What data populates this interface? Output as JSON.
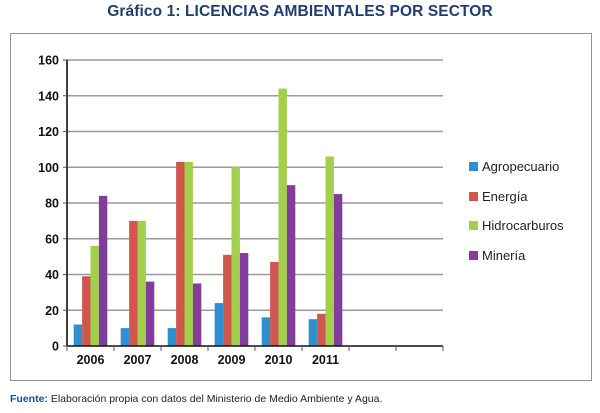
{
  "title": "Gráfico 1: LICENCIAS AMBIENTALES POR SECTOR",
  "source": {
    "label": "Fuente:",
    "text": " Elaboración propia con datos del Ministerio de Medio Ambiente y Agua."
  },
  "chart_data": {
    "type": "bar",
    "title": "Gráfico 1: LICENCIAS AMBIENTALES POR SECTOR",
    "xlabel": "",
    "ylabel": "",
    "categories": [
      "2006",
      "2007",
      "2008",
      "2009",
      "2010",
      "2011",
      "",
      ""
    ],
    "ylim": [
      0,
      160
    ],
    "yticks": [
      0,
      20,
      40,
      60,
      80,
      100,
      120,
      140,
      160
    ],
    "ytick_labels": [
      "0",
      "20",
      "40",
      "60",
      "80",
      "100",
      "120",
      "140",
      "160"
    ],
    "grid": true,
    "legend_position": "right",
    "series": [
      {
        "name": "Agropecuario",
        "color": "#2e8fd0",
        "values": [
          12,
          10,
          10,
          24,
          16,
          15
        ]
      },
      {
        "name": "Energía",
        "color": "#d0574f",
        "values": [
          39,
          70,
          103,
          51,
          47,
          18
        ]
      },
      {
        "name": "Hidrocarburos",
        "color": "#a3cf4a",
        "values": [
          56,
          70,
          103,
          100,
          144,
          106
        ]
      },
      {
        "name": "Minería",
        "color": "#823c9b",
        "values": [
          84,
          36,
          35,
          52,
          90,
          85
        ]
      }
    ]
  }
}
